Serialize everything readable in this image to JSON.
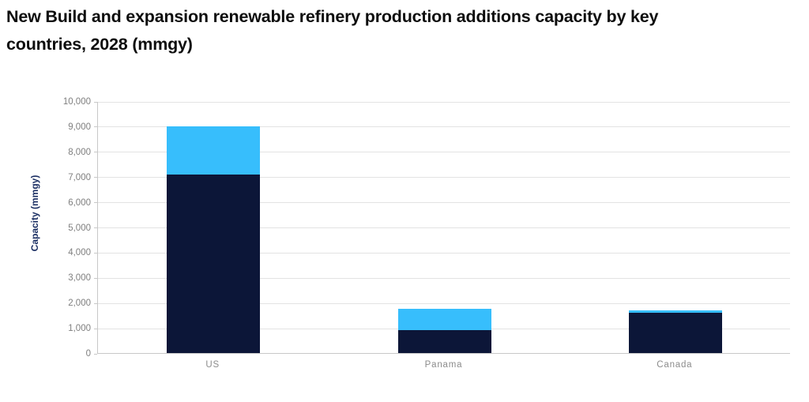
{
  "title": {
    "line1": "New Build and expansion renewable refinery production additions capacity by key",
    "line2": "countries, 2028 (mmgy)"
  },
  "axes": {
    "y_title": "Capacity (mmgy)",
    "y_tick_labels": [
      "0",
      "1,000",
      "2,000",
      "3,000",
      "4,000",
      "5,000",
      "6,000",
      "7,000",
      "8,000",
      "9,000",
      "10,000"
    ],
    "x_labels": [
      "US",
      "Panama",
      "Canada"
    ]
  },
  "colors": {
    "navy_segment": "#0c1638",
    "light_blue_segment": "#37befc",
    "gridline": "#e3e3e3",
    "axis_line": "#c8c8c8",
    "tick_label": "#7f7f7f",
    "x_label": "#8c8c8c",
    "title_text": "#0d0d0d",
    "y_axis_title_text": "#1b2f63"
  },
  "chart_data": {
    "type": "bar",
    "stacked": true,
    "title": "New Build and expansion renewable refinery production additions capacity by key countries, 2028 (mmgy)",
    "categories": [
      "US",
      "Panama",
      "Canada"
    ],
    "series": [
      {
        "name": "bottom-segment-dark-navy",
        "color": "#0c1638",
        "values": [
          7100,
          900,
          1600
        ]
      },
      {
        "name": "top-segment-light-blue",
        "color": "#37befc",
        "values": [
          1900,
          850,
          100
        ]
      }
    ],
    "xlabel": "",
    "ylabel": "Capacity (mmgy)",
    "ylim": [
      0,
      10000
    ],
    "ytick_interval": 1000,
    "grid": true,
    "legend": "none"
  }
}
